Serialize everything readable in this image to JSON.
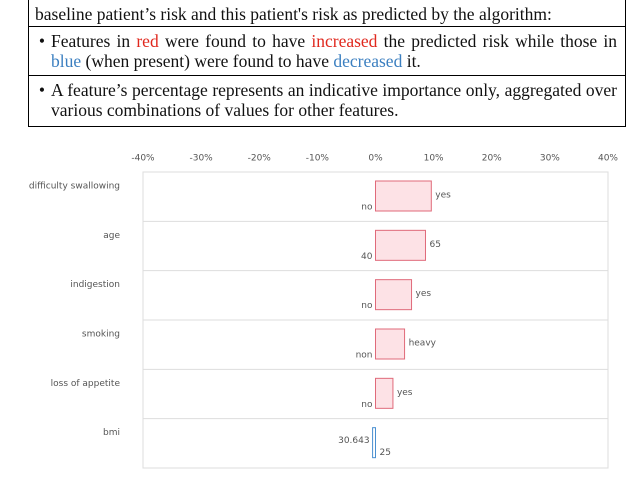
{
  "explanation": {
    "intro": "baseline patient’s risk and this patient's risk as predicted by the algorithm:",
    "bullets": [
      [
        "Features in ",
        "red",
        " were found to have ",
        "increased",
        " the predicted risk while those in ",
        "blue",
        " (when present) were found to have ",
        "decreased",
        " it."
      ],
      [
        "A feature’s percentage represents an indicative importance only, aggregated over various combinations of values for other features."
      ]
    ]
  },
  "chart_data": {
    "type": "bar",
    "orientation": "horizontal",
    "categories": [
      "difficulty swallowing",
      "age",
      "indigestion",
      "smoking",
      "loss of appetite",
      "bmi"
    ],
    "values": [
      9.6,
      8.6,
      6.2,
      5,
      3,
      -0.5
    ],
    "feature_values": [
      "yes",
      "65",
      "yes",
      "heavy",
      "yes",
      "25"
    ],
    "baseline_values": [
      "no",
      "40",
      "no",
      "non",
      "no",
      "30.643"
    ],
    "colors": {
      "increase": "#e06a7a",
      "decrease": "#4a8fd0"
    },
    "xlim": [
      -40,
      40
    ],
    "xticks": [
      {
        "value": -40,
        "label": "-40%"
      },
      {
        "value": -30,
        "label": "-30%"
      },
      {
        "value": -20,
        "label": "-20%"
      },
      {
        "value": -10,
        "label": "-10%"
      },
      {
        "value": 0,
        "label": "0%"
      },
      {
        "value": 10,
        "label": "10%"
      },
      {
        "value": 20,
        "label": "20%"
      },
      {
        "value": 30,
        "label": "30%"
      },
      {
        "value": 40,
        "label": "40%"
      }
    ]
  }
}
